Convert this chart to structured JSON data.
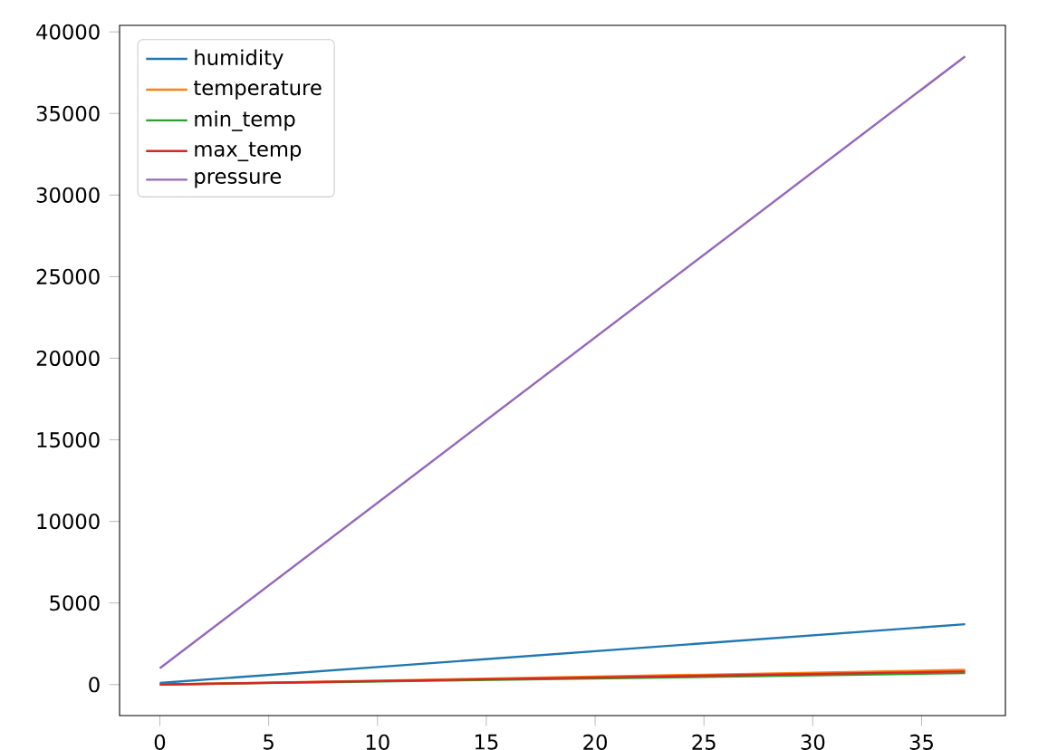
{
  "chart_data": {
    "type": "line",
    "x": [
      0,
      37
    ],
    "series": [
      {
        "name": "humidity",
        "color": "#1f77b4",
        "values": [
          100,
          3700
        ]
      },
      {
        "name": "temperature",
        "color": "#ff7f0e",
        "values": [
          0,
          900
        ]
      },
      {
        "name": "min_temp",
        "color": "#2ca02c",
        "values": [
          0,
          700
        ]
      },
      {
        "name": "max_temp",
        "color": "#d62728",
        "values": [
          0,
          800
        ]
      },
      {
        "name": "pressure",
        "color": "#9467bd",
        "values": [
          1000,
          38500
        ]
      }
    ],
    "xlim": [
      -1.85,
      38.85
    ],
    "ylim": [
      -1900,
      40400
    ],
    "xticks": [
      0,
      5,
      10,
      15,
      20,
      25,
      30,
      35
    ],
    "yticks": [
      0,
      5000,
      10000,
      15000,
      20000,
      25000,
      30000,
      35000,
      40000
    ],
    "legend": "top left",
    "grid": false
  }
}
